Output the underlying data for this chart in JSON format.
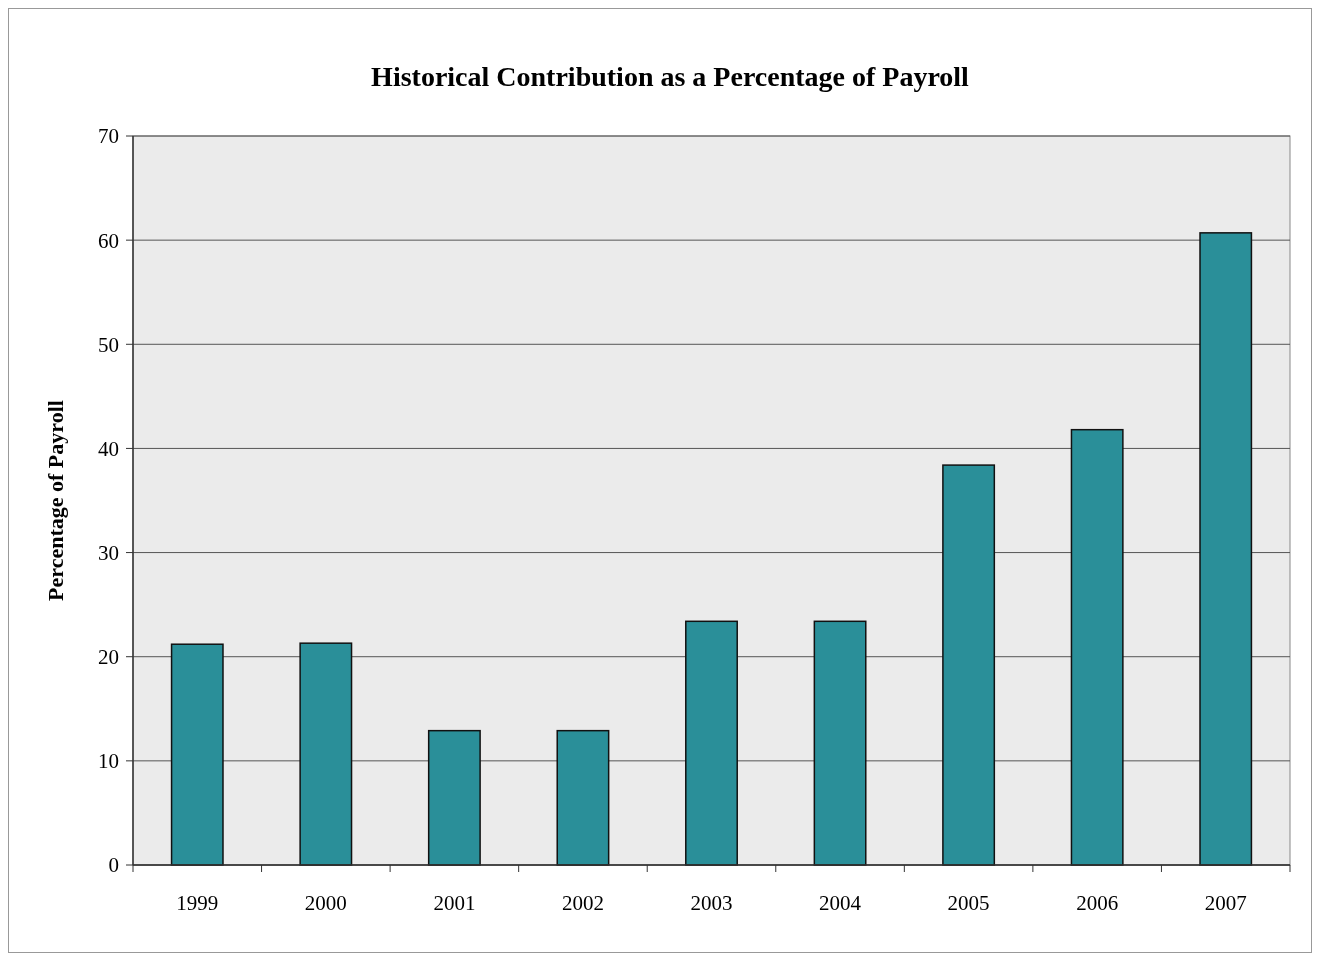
{
  "chart_data": {
    "type": "bar",
    "title": "Historical Contribution as a Percentage of Payroll",
    "ylabel": "Percentage of Payroll",
    "categories": [
      "1999",
      "2000",
      "2001",
      "2002",
      "2003",
      "2004",
      "2005",
      "2006",
      "2007"
    ],
    "values": [
      21.2,
      21.3,
      12.9,
      12.9,
      23.4,
      23.4,
      38.4,
      41.8,
      60.7
    ],
    "color": "#2a8f99",
    "ylim": [
      0,
      70
    ],
    "yticks": [
      0,
      10,
      20,
      30,
      40,
      50,
      60,
      70
    ],
    "grid": "y"
  }
}
